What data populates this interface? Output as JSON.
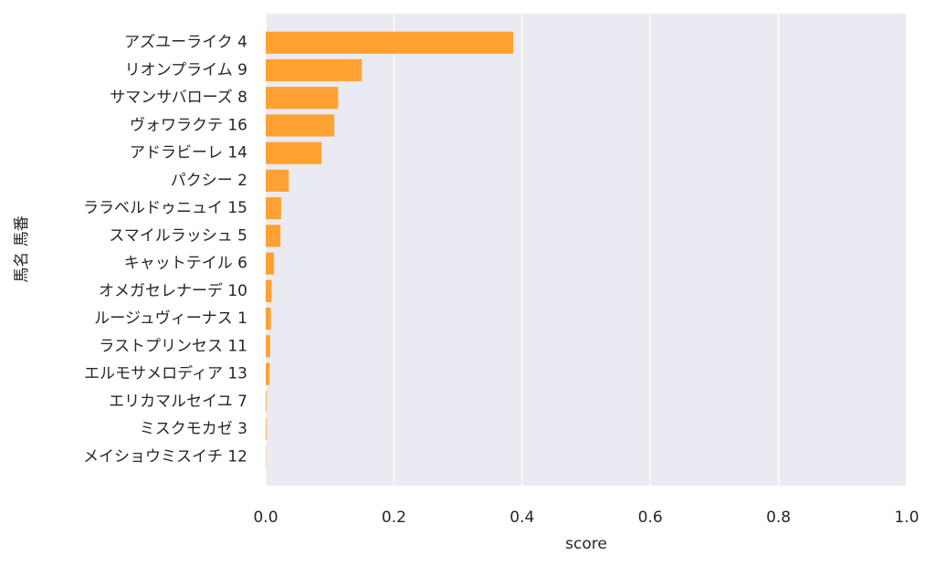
{
  "chart_data": {
    "type": "barh",
    "x_label": "score",
    "y_label": "馬名 馬番",
    "categories": [
      "アズユーライク 4",
      "リオンプライム 9",
      "サマンサバローズ 8",
      "ヴォワラクテ 16",
      "アドラビーレ 14",
      "パクシー 2",
      "ララベルドゥニュイ 15",
      "スマイルラッシュ 5",
      "キャットテイル 6",
      "オメガセレナーデ 10",
      "ルージュヴィーナス 1",
      "ラストプリンセス 11",
      "エルモサメロディア 13",
      "エリカマルセイユ 7",
      "ミスクモカゼ 3",
      "メイショウミスイチ 12"
    ],
    "values": [
      0.386,
      0.15,
      0.113,
      0.107,
      0.087,
      0.036,
      0.024,
      0.023,
      0.013,
      0.009,
      0.008,
      0.007,
      0.006,
      0.001,
      0.001,
      0.0005
    ],
    "color": "#ffa133",
    "xlim": [
      0,
      1
    ],
    "xticks": [
      {
        "value": 0,
        "label": "0.0"
      },
      0.2,
      0.4,
      0.6,
      0.8,
      {
        "value": 1,
        "label": "1.0"
      }
    ],
    "grid": true
  }
}
